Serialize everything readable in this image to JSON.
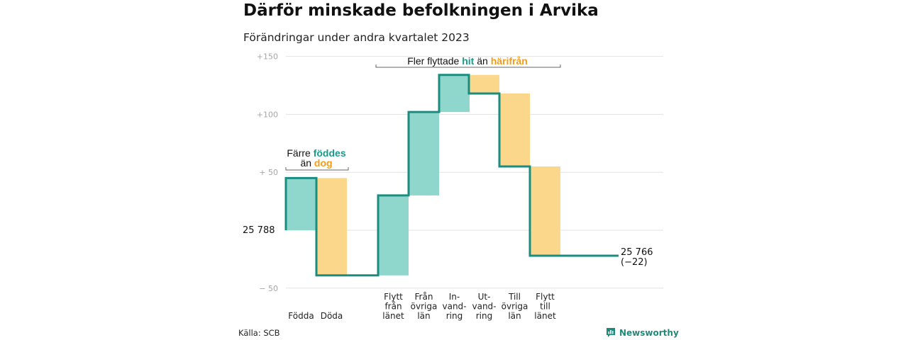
{
  "header": {
    "title": "Därför minskade befolkningen i Arvika",
    "subtitle": "Förändringar under andra kvartalet 2023"
  },
  "footer": {
    "source": "Källa: SCB",
    "brand": "Newsworthy"
  },
  "colors": {
    "increase": "#8fd6cc",
    "decrease": "#fbd78b",
    "line": "#1a8d80",
    "grid": "#e3e3e3",
    "teal_text": "#1a9b88",
    "orange_text": "#f39c1a"
  },
  "chart_data": {
    "type": "waterfall",
    "start": {
      "label": "25  788",
      "value": 0
    },
    "end": {
      "label_line1": "25 766",
      "label_line2": "(−22)",
      "value": -22
    },
    "ylim": [
      -55,
      150
    ],
    "yticks": [
      {
        "value": 150,
        "label": "+150"
      },
      {
        "value": 100,
        "label": "+100"
      },
      {
        "value": 50,
        "label": "+  50"
      },
      {
        "value": 0,
        "label": ""
      },
      {
        "value": -50,
        "label": "−  50"
      }
    ],
    "steps": [
      {
        "key": "fodda",
        "label": [
          "Födda"
        ],
        "delta": 45
      },
      {
        "key": "doda",
        "label": [
          "Döda"
        ],
        "delta": -84
      },
      {
        "key": "flytt_fran_lanet",
        "label": [
          "Flytt",
          "från",
          "länet"
        ],
        "delta": 69
      },
      {
        "key": "fran_ovriga_lan",
        "label": [
          "Från",
          "övriga",
          "län"
        ],
        "delta": 72
      },
      {
        "key": "invandring",
        "label": [
          "In-",
          "vand-",
          "ring"
        ],
        "delta": 32
      },
      {
        "key": "utvandring",
        "label": [
          "Ut-",
          "vand-",
          "ring"
        ],
        "delta": -16
      },
      {
        "key": "till_ovriga_lan",
        "label": [
          "Till",
          "övriga",
          "län"
        ],
        "delta": -63
      },
      {
        "key": "flytt_till_lanet",
        "label": [
          "Flytt",
          "till",
          "länet"
        ],
        "delta": -77
      }
    ],
    "annotations": [
      {
        "key": "births",
        "line1": [
          "Färre ",
          "föddes"
        ],
        "line2": [
          "än ",
          "dog"
        ]
      },
      {
        "key": "migration",
        "line1": [
          "Fler flyttade ",
          "hit",
          " än ",
          "härifrån"
        ]
      }
    ]
  }
}
